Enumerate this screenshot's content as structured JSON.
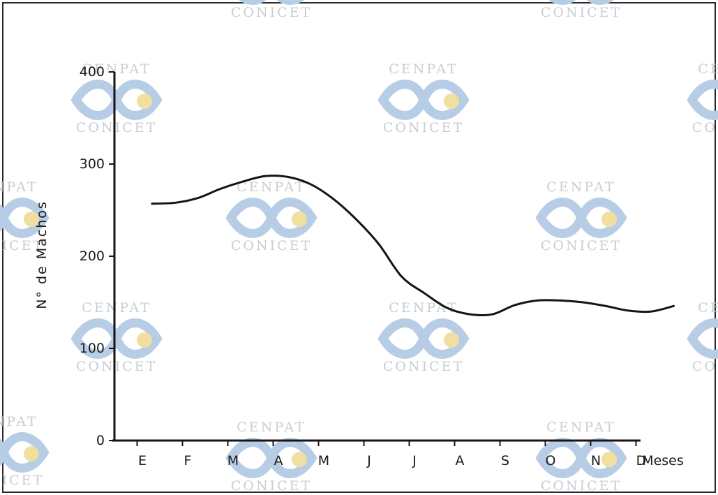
{
  "watermark": {
    "top": "CENPAT",
    "bottom": "CONICET"
  },
  "chart_data": {
    "type": "line",
    "title": "",
    "xlabel": "Meses",
    "ylabel": "N° de Machos",
    "categories": [
      "E",
      "F",
      "M",
      "A",
      "M",
      "J",
      "J",
      "A",
      "S",
      "O",
      "N",
      "D"
    ],
    "y_ticks": [
      0,
      100,
      200,
      300,
      400
    ],
    "ylim": [
      0,
      400
    ],
    "grid": false,
    "legend": "none",
    "series": [
      {
        "x": [
          0,
          0.5,
          1,
          1.5,
          2,
          2.5,
          3,
          3.5,
          4,
          4.5,
          5,
          5.5,
          6,
          6.5,
          7,
          7.5,
          8,
          8.5,
          9,
          9.5,
          10,
          10.5,
          11,
          11.5
        ],
        "y": [
          257,
          258,
          263,
          273,
          281,
          287,
          286,
          278,
          262,
          240,
          213,
          178,
          160,
          144,
          137,
          137,
          147,
          152,
          152,
          150,
          146,
          141,
          140,
          146
        ]
      }
    ]
  },
  "colors": {
    "line": "#141414",
    "axis": "#141414",
    "watermark_text": "#c9cdd6",
    "watermark_logo_blue": "#b7cde6",
    "watermark_logo_yellow": "#f1dfa0"
  }
}
